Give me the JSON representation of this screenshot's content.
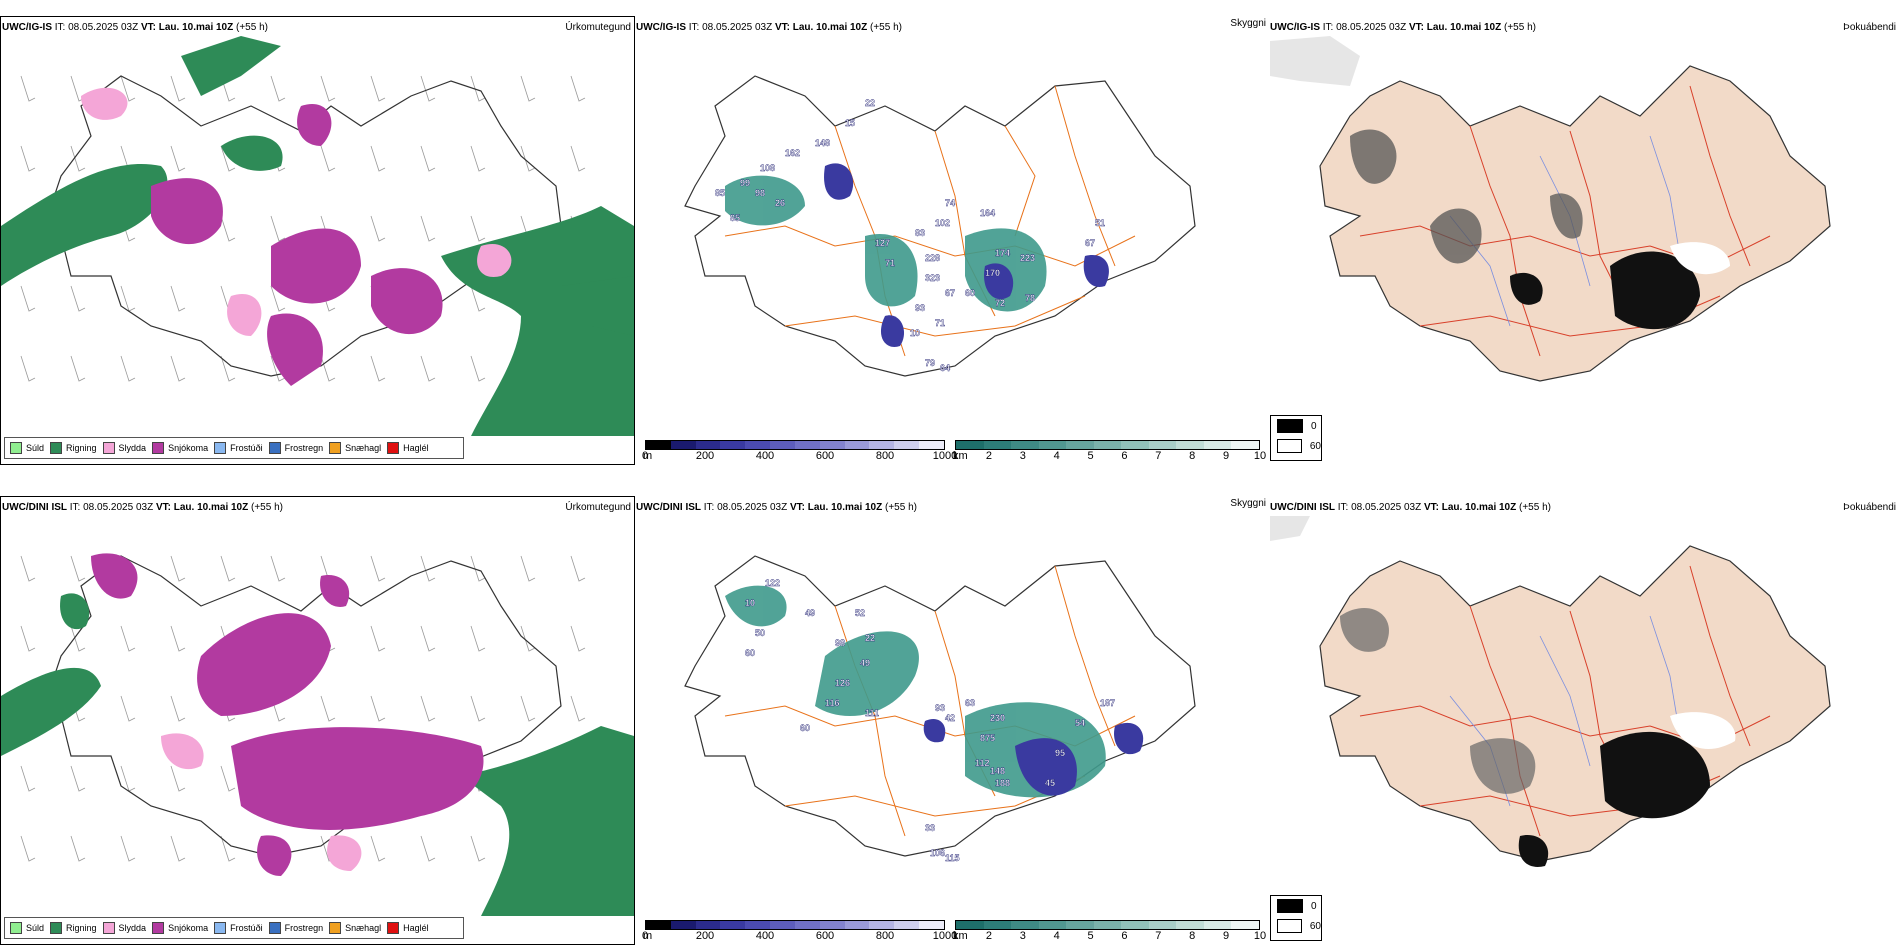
{
  "rows": [
    {
      "precip": {
        "model": "UWC/IG-IS",
        "it_label": "IT:",
        "it": "08.05.2025 03Z",
        "vt_label": "VT:",
        "vt": "Lau. 10.mai 10Z",
        "lead": "(+55 h)",
        "name": "Úrkomutegund"
      },
      "cloud": {
        "model": "UWC/IG-IS",
        "it_label": "IT:",
        "it": "08.05.2025 03Z",
        "vt_label": "VT:",
        "vt": "Lau. 10.mai 10Z",
        "lead": "(+55 h)",
        "name": "Skyggni",
        "labels": [
          "85",
          "99",
          "108",
          "162",
          "98",
          "26",
          "148",
          "15",
          "85",
          "22",
          "127",
          "71",
          "83",
          "228",
          "102",
          "74",
          "164",
          "323",
          "67",
          "174",
          "223",
          "170",
          "60",
          "72",
          "78",
          "67",
          "51",
          "93",
          "71",
          "10",
          "79",
          "64"
        ]
      },
      "fog": {
        "model": "UWC/IG-IS",
        "it_label": "IT:",
        "it": "08.05.2025 03Z",
        "vt_label": "VT:",
        "vt": "Lau. 10.mai 10Z",
        "lead": "(+55 h)",
        "name": "Þokuábendi"
      }
    },
    {
      "precip": {
        "model": "UWC/DINI ISL",
        "it_label": "IT:",
        "it": "08.05.2025 03Z",
        "vt_label": "VT:",
        "vt": "Lau. 10.mai 10Z",
        "lead": "(+55 h)",
        "name": "Úrkomutegund"
      },
      "cloud": {
        "model": "UWC/DINI ISL",
        "it_label": "IT:",
        "it": "08.05.2025 03Z",
        "vt_label": "VT:",
        "vt": "Lau. 10.mai 10Z",
        "lead": "(+55 h)",
        "name": "Skyggni",
        "labels": [
          "122",
          "10",
          "50",
          "49",
          "60",
          "98",
          "52",
          "22",
          "49",
          "126",
          "116",
          "111",
          "60",
          "93",
          "42",
          "63",
          "230",
          "54",
          "187",
          "875",
          "112",
          "148",
          "188",
          "95",
          "45",
          "33",
          "106",
          "115"
        ]
      },
      "fog": {
        "model": "UWC/DINI ISL",
        "it_label": "IT:",
        "it": "08.05.2025 03Z",
        "vt_label": "VT:",
        "vt": "Lau. 10.mai 10Z",
        "lead": "(+55 h)",
        "name": "Þokuábendi"
      }
    }
  ],
  "precip_legend": [
    {
      "label": "Súld",
      "color": "#90ee90"
    },
    {
      "label": "Rigning",
      "color": "#2e8b57"
    },
    {
      "label": "Slydda",
      "color": "#f4a6d7"
    },
    {
      "label": "Snjókoma",
      "color": "#b23aa0"
    },
    {
      "label": "Frostúði",
      "color": "#8ab8f0"
    },
    {
      "label": "Frostregn",
      "color": "#3a70c0"
    },
    {
      "label": "Snæhagl",
      "color": "#f0a020"
    },
    {
      "label": "Haglél",
      "color": "#e01010"
    }
  ],
  "colorbars": {
    "height": {
      "unit": "m",
      "ticks": [
        "0",
        "200",
        "400",
        "600",
        "800",
        "1000"
      ],
      "colors": [
        "#000000",
        "#1a1a6e",
        "#2b2b8c",
        "#3a3aa0",
        "#4b4bb0",
        "#5d5dbb",
        "#7070c5",
        "#8383cf",
        "#9a9ad9",
        "#b5b5e4",
        "#cfcfee",
        "#ececf8"
      ]
    },
    "depth": {
      "unit": "km",
      "ticks": [
        "1",
        "2",
        "3",
        "4",
        "5",
        "6",
        "7",
        "8",
        "9",
        "10"
      ],
      "colors": [
        "#1e6f6a",
        "#2d7d78",
        "#3f8a85",
        "#519791",
        "#66a49e",
        "#7bb2ab",
        "#91c0b9",
        "#a8cec8",
        "#c0dcd6",
        "#d8eae6",
        "#eef6f4"
      ]
    }
  },
  "fog_legend": [
    {
      "label": "0",
      "color": "#000000"
    },
    {
      "label": "60",
      "color": "#ffffff"
    }
  ],
  "colors": {
    "orange_roads": "#e8721a",
    "red_roads": "#d8402a",
    "land_tan": "#f2dac8",
    "rain_green": "#2e8b57",
    "snow_magenta": "#b23aa0",
    "sleet_pink": "#f4a6d7",
    "cloud_teal": "#3f9a8c",
    "cloud_blue": "#3a3aa0"
  }
}
